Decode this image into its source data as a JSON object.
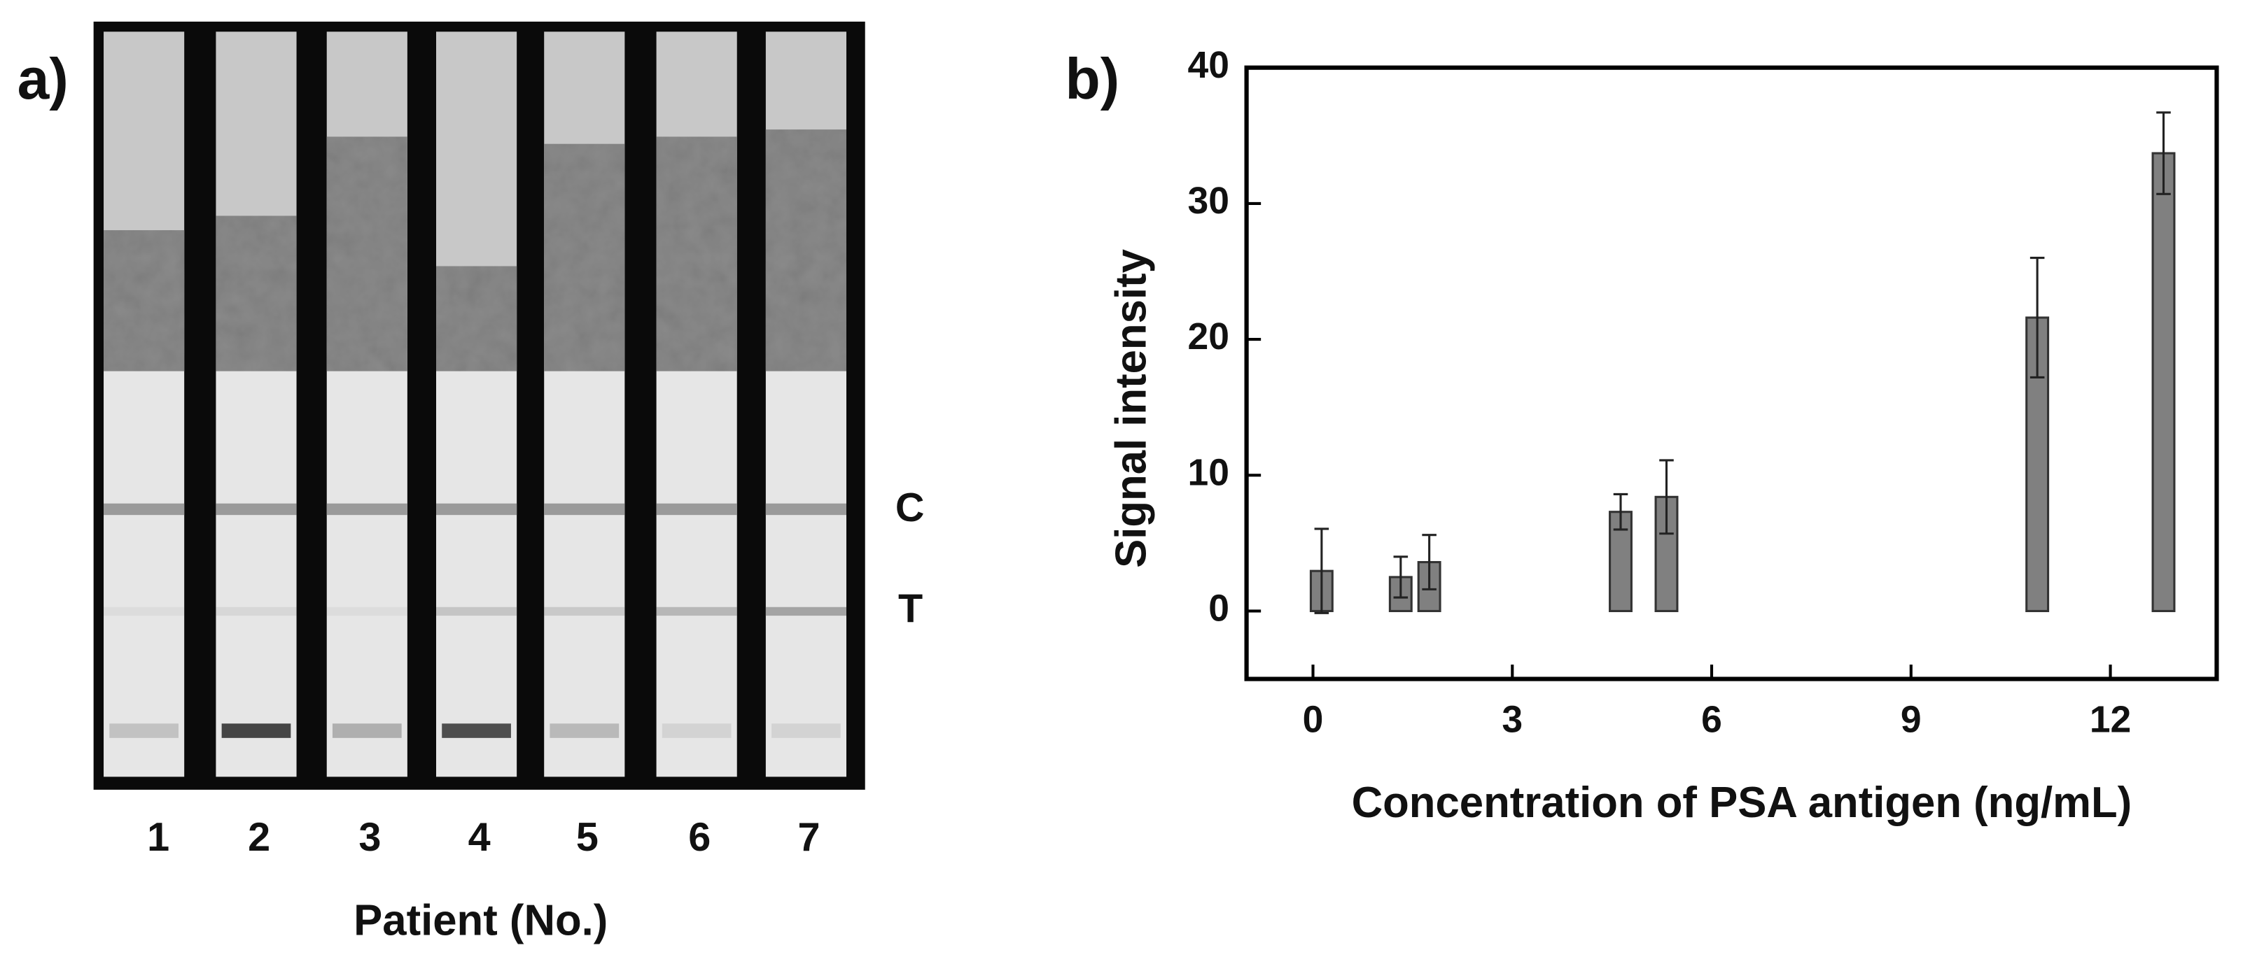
{
  "panel_a": {
    "label": "a)",
    "patients": [
      "1",
      "2",
      "3",
      "4",
      "5",
      "6",
      "7"
    ],
    "x_label": "Patient (No.)",
    "line_labels": [
      "C",
      "T"
    ]
  },
  "chart_data": {
    "type": "bar",
    "panel_label": "b)",
    "x_label": "Concentration of PSA antigen (ng/mL)",
    "y_label": "Signal intensity",
    "x": [
      0.13,
      1.32,
      1.75,
      4.63,
      5.32,
      10.9,
      12.8
    ],
    "values": [
      2.95,
      2.5,
      3.6,
      7.3,
      8.4,
      21.6,
      33.7
    ],
    "errors": [
      3.1,
      1.5,
      2.0,
      1.3,
      2.7,
      4.4,
      3.0
    ],
    "color": "#808080",
    "xlim": [
      -1,
      13.6
    ],
    "xticks": [
      0,
      3,
      6,
      9,
      12
    ],
    "ylim": [
      -5,
      40
    ],
    "yticks": [
      0,
      10,
      20,
      30,
      40
    ]
  }
}
